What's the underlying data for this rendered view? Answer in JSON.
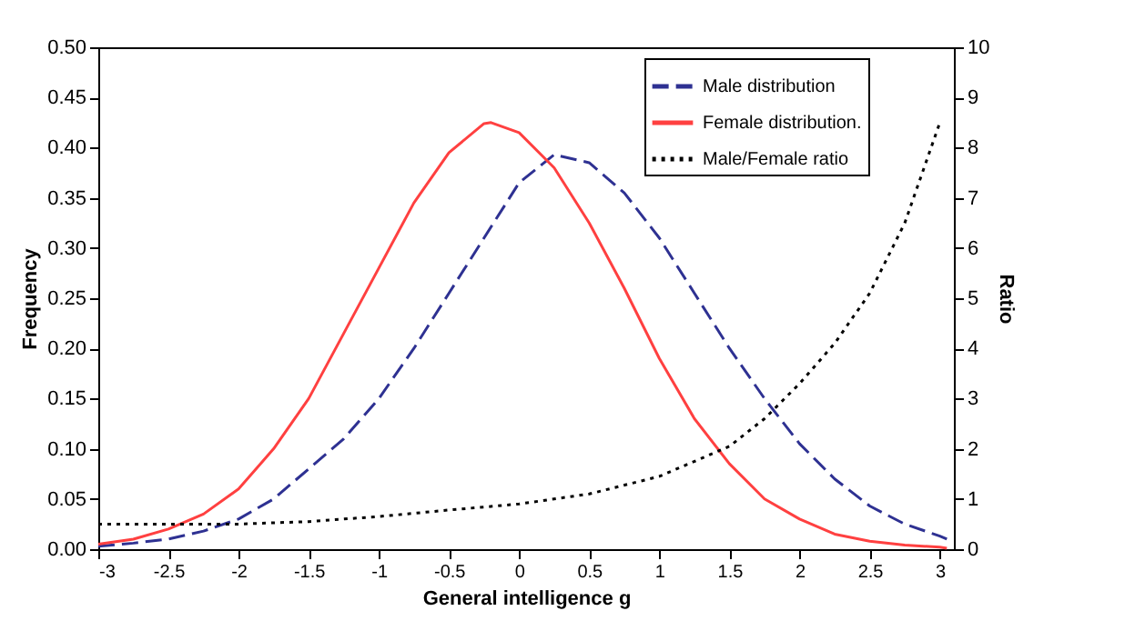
{
  "chart_data": {
    "type": "line",
    "xlabel": "General intelligence g",
    "ylabel": "Frequency",
    "y2label": "Ratio",
    "xlim": [
      -3,
      3.1
    ],
    "xticks": [
      -3,
      -2.5,
      -2,
      -1.5,
      -1,
      -0.5,
      0,
      0.5,
      1,
      1.5,
      2,
      2.5,
      3
    ],
    "ylim": [
      0,
      0.5
    ],
    "yticks": [
      {
        "value": 0,
        "label": "0.00"
      },
      {
        "value": 0.05,
        "label": "0.05"
      },
      {
        "value": 0.1,
        "label": "0.10"
      },
      {
        "value": 0.15,
        "label": "0.15"
      },
      {
        "value": 0.2,
        "label": "0.20"
      },
      {
        "value": 0.25,
        "label": "0.25"
      },
      {
        "value": 0.3,
        "label": "0.30"
      },
      {
        "value": 0.35,
        "label": "0.35"
      },
      {
        "value": 0.4,
        "label": "0.40"
      },
      {
        "value": 0.45,
        "label": "0.45"
      },
      {
        "value": 0.5,
        "label": "0.50"
      }
    ],
    "y2lim": [
      0,
      10
    ],
    "y2ticks": [
      0,
      1,
      2,
      3,
      4,
      5,
      6,
      7,
      8,
      9,
      10
    ],
    "grid": false,
    "legend": "top right",
    "series": [
      {
        "name": "Male distribution",
        "color": "#2e3192",
        "line_style": "dashed",
        "x": [
          -3,
          -2.75,
          -2.5,
          -2.25,
          -2,
          -1.75,
          -1.5,
          -1.25,
          -1,
          -0.75,
          -0.5,
          -0.25,
          0,
          0.25,
          0.5,
          0.75,
          1,
          1.25,
          1.5,
          1.75,
          2,
          2.25,
          2.5,
          2.75,
          3,
          3.05
        ],
        "values": [
          0.003,
          0.006,
          0.01,
          0.018,
          0.03,
          0.05,
          0.08,
          0.11,
          0.15,
          0.2,
          0.255,
          0.31,
          0.365,
          0.393,
          0.385,
          0.355,
          0.31,
          0.255,
          0.2,
          0.15,
          0.105,
          0.07,
          0.043,
          0.025,
          0.013,
          0.01
        ]
      },
      {
        "name": "Female distribution.",
        "color": "#ff4040",
        "line_style": "solid",
        "x": [
          -3,
          -2.75,
          -2.5,
          -2.25,
          -2,
          -1.75,
          -1.5,
          -1.25,
          -1,
          -0.75,
          -0.5,
          -0.25,
          -0.2,
          0,
          0.25,
          0.5,
          0.75,
          1,
          1.25,
          1.5,
          1.75,
          2,
          2.25,
          2.5,
          2.75,
          3,
          3.05
        ],
        "values": [
          0.005,
          0.01,
          0.02,
          0.035,
          0.06,
          0.1,
          0.15,
          0.215,
          0.28,
          0.345,
          0.395,
          0.424,
          0.425,
          0.415,
          0.38,
          0.325,
          0.26,
          0.19,
          0.13,
          0.085,
          0.05,
          0.03,
          0.015,
          0.008,
          0.004,
          0.002,
          0.001
        ]
      },
      {
        "name": "Male/Female ratio",
        "color": "#000000",
        "line_style": "dotted",
        "axis": "y2",
        "x": [
          -3,
          -2,
          -1.5,
          -1,
          -0.5,
          0,
          0.5,
          1,
          1.5,
          1.75,
          2,
          2.25,
          2.5,
          2.75,
          3
        ],
        "values": [
          0.5,
          0.5,
          0.55,
          0.65,
          0.78,
          0.9,
          1.1,
          1.45,
          2.05,
          2.6,
          3.3,
          4.1,
          5.1,
          6.5,
          8.5
        ]
      }
    ]
  }
}
